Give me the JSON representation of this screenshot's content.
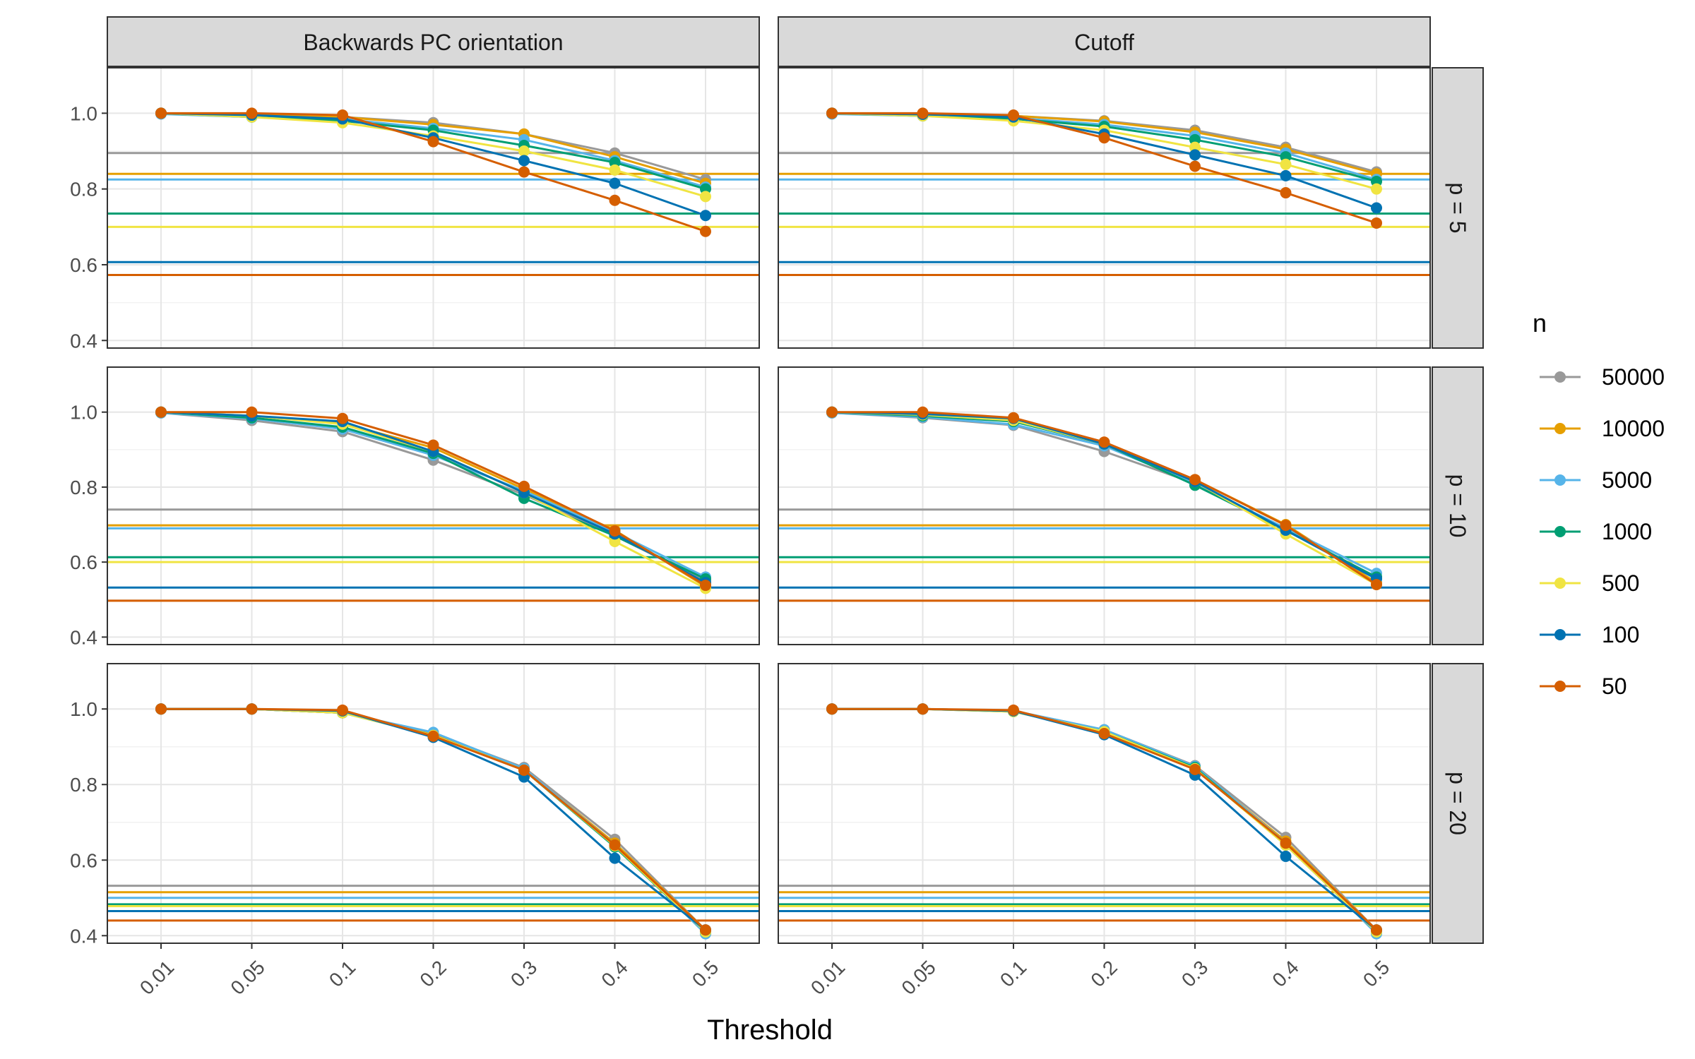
{
  "chart_data": {
    "type": "line",
    "layout": "faceted grid (rows: p, columns: method)",
    "xlabel": "Threshold",
    "ylabel": "",
    "ylim": [
      0.38,
      1.12
    ],
    "yticks": [
      0.4,
      0.6,
      0.8,
      1.0
    ],
    "ytick_labels": [
      "0.4",
      "0.6",
      "0.8",
      "1.0"
    ],
    "categories": [
      "0.01",
      "0.05",
      "0.1",
      "0.2",
      "0.3",
      "0.4",
      "0.5"
    ],
    "grid": true,
    "legend": {
      "title": "n",
      "position": "right",
      "entries": [
        {
          "name": "50000",
          "color": "#999999"
        },
        {
          "name": "10000",
          "color": "#E69F00"
        },
        {
          "name": "5000",
          "color": "#56B4E9"
        },
        {
          "name": "1000",
          "color": "#009E73"
        },
        {
          "name": "500",
          "color": "#F0E442"
        },
        {
          "name": "100",
          "color": "#0072B2"
        },
        {
          "name": "50",
          "color": "#D55E00"
        }
      ]
    },
    "col_labels": [
      "Backwards PC orientation",
      "Cutoff"
    ],
    "row_labels": [
      "p = 5",
      "p = 10",
      "p = 20"
    ],
    "panels": [
      {
        "row": "p = 5",
        "col": "Backwards PC orientation",
        "hlines": {
          "50000": 0.895,
          "10000": 0.84,
          "5000": 0.825,
          "1000": 0.735,
          "500": 0.7,
          "100": 0.607,
          "50": 0.573
        },
        "series": [
          {
            "name": "50000",
            "values": [
              1.0,
              0.995,
              0.99,
              0.975,
              0.945,
              0.895,
              0.825
            ]
          },
          {
            "name": "10000",
            "values": [
              1.0,
              0.995,
              0.99,
              0.97,
              0.945,
              0.885,
              0.815
            ]
          },
          {
            "name": "5000",
            "values": [
              0.998,
              0.99,
              0.985,
              0.96,
              0.93,
              0.875,
              0.805
            ]
          },
          {
            "name": "1000",
            "values": [
              1.0,
              0.99,
              0.98,
              0.955,
              0.915,
              0.87,
              0.8
            ]
          },
          {
            "name": "500",
            "values": [
              1.0,
              0.99,
              0.975,
              0.94,
              0.9,
              0.85,
              0.78
            ]
          },
          {
            "name": "100",
            "values": [
              1.0,
              0.995,
              0.985,
              0.935,
              0.875,
              0.815,
              0.73
            ]
          },
          {
            "name": "50",
            "values": [
              1.0,
              1.0,
              0.995,
              0.925,
              0.845,
              0.77,
              0.688
            ]
          }
        ]
      },
      {
        "row": "p = 5",
        "col": "Cutoff",
        "hlines": {
          "50000": 0.895,
          "10000": 0.84,
          "5000": 0.825,
          "1000": 0.735,
          "500": 0.7,
          "100": 0.607,
          "50": 0.573
        },
        "series": [
          {
            "name": "50000",
            "values": [
              1.0,
              0.997,
              0.993,
              0.98,
              0.955,
              0.91,
              0.845
            ]
          },
          {
            "name": "10000",
            "values": [
              1.0,
              0.997,
              0.993,
              0.978,
              0.95,
              0.905,
              0.84
            ]
          },
          {
            "name": "5000",
            "values": [
              0.998,
              0.993,
              0.988,
              0.97,
              0.94,
              0.895,
              0.825
            ]
          },
          {
            "name": "1000",
            "values": [
              1.0,
              0.993,
              0.985,
              0.965,
              0.93,
              0.885,
              0.82
            ]
          },
          {
            "name": "500",
            "values": [
              1.0,
              0.993,
              0.98,
              0.955,
              0.91,
              0.865,
              0.8
            ]
          },
          {
            "name": "100",
            "values": [
              1.0,
              0.997,
              0.99,
              0.945,
              0.89,
              0.835,
              0.75
            ]
          },
          {
            "name": "50",
            "values": [
              1.0,
              1.0,
              0.995,
              0.935,
              0.86,
              0.79,
              0.71
            ]
          }
        ]
      },
      {
        "row": "p = 10",
        "col": "Backwards PC orientation",
        "hlines": {
          "50000": 0.74,
          "10000": 0.698,
          "5000": 0.69,
          "1000": 0.613,
          "500": 0.6,
          "100": 0.532,
          "50": 0.497
        },
        "series": [
          {
            "name": "50000",
            "values": [
              0.998,
              0.978,
              0.948,
              0.872,
              0.78,
              0.67,
              0.55
            ]
          },
          {
            "name": "10000",
            "values": [
              1.0,
              0.99,
              0.97,
              0.905,
              0.795,
              0.685,
              0.535
            ]
          },
          {
            "name": "5000",
            "values": [
              0.998,
              0.983,
              0.955,
              0.885,
              0.79,
              0.68,
              0.56
            ]
          },
          {
            "name": "1000",
            "values": [
              1.0,
              0.985,
              0.96,
              0.89,
              0.77,
              0.67,
              0.555
            ]
          },
          {
            "name": "500",
            "values": [
              1.0,
              0.99,
              0.968,
              0.895,
              0.785,
              0.655,
              0.53
            ]
          },
          {
            "name": "100",
            "values": [
              1.0,
              0.99,
              0.975,
              0.895,
              0.785,
              0.675,
              0.545
            ]
          },
          {
            "name": "50",
            "values": [
              1.0,
              1.0,
              0.983,
              0.912,
              0.802,
              0.683,
              0.538
            ]
          }
        ]
      },
      {
        "row": "p = 10",
        "col": "Cutoff",
        "hlines": {
          "50000": 0.74,
          "10000": 0.698,
          "5000": 0.69,
          "1000": 0.613,
          "500": 0.6,
          "100": 0.532,
          "50": 0.497
        },
        "series": [
          {
            "name": "50000",
            "values": [
              0.998,
              0.985,
              0.965,
              0.895,
              0.81,
              0.685,
              0.56
            ]
          },
          {
            "name": "10000",
            "values": [
              1.0,
              0.995,
              0.98,
              0.915,
              0.82,
              0.7,
              0.545
            ]
          },
          {
            "name": "5000",
            "values": [
              0.998,
              0.987,
              0.967,
              0.91,
              0.81,
              0.69,
              0.57
            ]
          },
          {
            "name": "1000",
            "values": [
              1.0,
              0.99,
              0.975,
              0.915,
              0.805,
              0.685,
              0.56
            ]
          },
          {
            "name": "500",
            "values": [
              1.0,
              0.993,
              0.978,
              0.915,
              0.815,
              0.675,
              0.54
            ]
          },
          {
            "name": "100",
            "values": [
              1.0,
              0.995,
              0.983,
              0.915,
              0.815,
              0.685,
              0.555
            ]
          },
          {
            "name": "50",
            "values": [
              1.0,
              1.0,
              0.985,
              0.92,
              0.82,
              0.698,
              0.54
            ]
          }
        ]
      },
      {
        "row": "p = 20",
        "col": "Backwards PC orientation",
        "hlines": {
          "50000": 0.532,
          "10000": 0.515,
          "5000": 0.5,
          "1000": 0.483,
          "500": 0.478,
          "100": 0.465,
          "50": 0.44
        },
        "series": [
          {
            "name": "50000",
            "values": [
              1.0,
              1.0,
              0.99,
              0.935,
              0.845,
              0.655,
              0.415
            ]
          },
          {
            "name": "10000",
            "values": [
              1.0,
              1.0,
              0.99,
              0.935,
              0.84,
              0.645,
              0.415
            ]
          },
          {
            "name": "5000",
            "values": [
              1.0,
              1.0,
              0.99,
              0.938,
              0.842,
              0.64,
              0.405
            ]
          },
          {
            "name": "1000",
            "values": [
              1.0,
              1.0,
              0.99,
              0.93,
              0.838,
              0.635,
              0.41
            ]
          },
          {
            "name": "500",
            "values": [
              1.0,
              1.0,
              0.99,
              0.93,
              0.838,
              0.638,
              0.41
            ]
          },
          {
            "name": "100",
            "values": [
              1.0,
              1.0,
              0.995,
              0.925,
              0.82,
              0.605,
              0.415
            ]
          },
          {
            "name": "50",
            "values": [
              1.0,
              1.0,
              0.997,
              0.928,
              0.838,
              0.64,
              0.415
            ]
          }
        ]
      },
      {
        "row": "p = 20",
        "col": "Cutoff",
        "hlines": {
          "50000": 0.532,
          "10000": 0.515,
          "5000": 0.5,
          "1000": 0.483,
          "500": 0.478,
          "100": 0.465,
          "50": 0.44
        },
        "series": [
          {
            "name": "50000",
            "values": [
              1.0,
              1.0,
              0.995,
              0.945,
              0.85,
              0.66,
              0.415
            ]
          },
          {
            "name": "10000",
            "values": [
              1.0,
              1.0,
              0.995,
              0.94,
              0.845,
              0.65,
              0.415
            ]
          },
          {
            "name": "5000",
            "values": [
              1.0,
              1.0,
              0.995,
              0.945,
              0.848,
              0.645,
              0.405
            ]
          },
          {
            "name": "1000",
            "values": [
              1.0,
              1.0,
              0.993,
              0.94,
              0.845,
              0.64,
              0.41
            ]
          },
          {
            "name": "500",
            "values": [
              1.0,
              1.0,
              0.993,
              0.94,
              0.842,
              0.64,
              0.41
            ]
          },
          {
            "name": "100",
            "values": [
              1.0,
              1.0,
              0.995,
              0.932,
              0.825,
              0.61,
              0.415
            ]
          },
          {
            "name": "50",
            "values": [
              1.0,
              1.0,
              0.997,
              0.935,
              0.84,
              0.645,
              0.415
            ]
          }
        ]
      }
    ]
  }
}
